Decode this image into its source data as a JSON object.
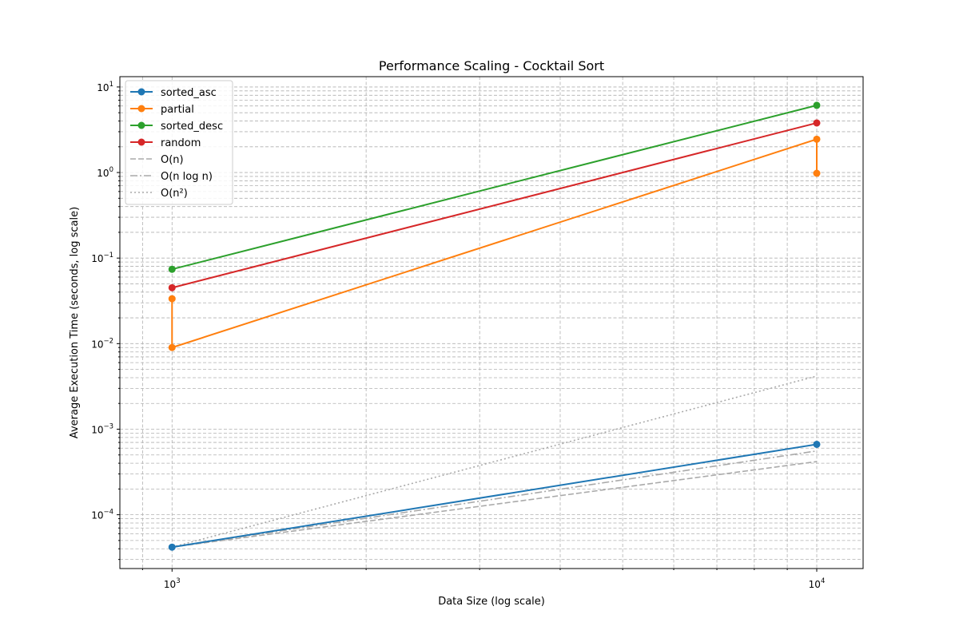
{
  "chart_data": {
    "type": "line",
    "title": "Performance Scaling - Cocktail Sort",
    "xlabel": "Data Size (log scale)",
    "ylabel": "Average Execution Time (seconds, log scale)",
    "xscale": "log",
    "yscale": "log",
    "xlim": [
      830,
      11800
    ],
    "ylim": [
      2.35e-05,
      13.2
    ],
    "grid": true,
    "legend_position": "upper-left",
    "x_ticks": [
      {
        "base": "10",
        "exp": "3",
        "value": 1000
      },
      {
        "base": "10",
        "exp": "4",
        "value": 10000
      }
    ],
    "y_ticks": [
      {
        "base": "10",
        "exp": "−4",
        "value": 0.0001
      },
      {
        "base": "10",
        "exp": "−3",
        "value": 0.001
      },
      {
        "base": "10",
        "exp": "−2",
        "value": 0.01
      },
      {
        "base": "10",
        "exp": "−1",
        "value": 0.1
      },
      {
        "base": "10",
        "exp": "0",
        "value": 1
      },
      {
        "base": "10",
        "exp": "1",
        "value": 10
      }
    ],
    "series": [
      {
        "name": "sorted_asc",
        "color": "#1f77b4",
        "style": "solid",
        "marker": true,
        "points": [
          [
            1000,
            4.18e-05
          ],
          [
            10000,
            0.000665
          ]
        ]
      },
      {
        "name": "partial",
        "color": "#ff7f0e",
        "style": "solid",
        "marker": true,
        "points": [
          [
            1000,
            0.0335
          ],
          [
            1000,
            0.009
          ],
          [
            10000,
            2.45
          ],
          [
            10000,
            0.98
          ]
        ]
      },
      {
        "name": "sorted_desc",
        "color": "#2ca02c",
        "style": "solid",
        "marker": true,
        "points": [
          [
            1000,
            0.074
          ],
          [
            10000,
            6.1
          ]
        ]
      },
      {
        "name": "random",
        "color": "#d62728",
        "style": "solid",
        "marker": true,
        "points": [
          [
            1000,
            0.045
          ],
          [
            10000,
            3.8
          ]
        ]
      },
      {
        "name": "O(n)",
        "color": "#aaaaaa",
        "style": "dashed",
        "marker": false,
        "points": [
          [
            1000,
            4.18e-05
          ],
          [
            10000,
            0.000418
          ]
        ]
      },
      {
        "name": "O(n log n)",
        "color": "#aaaaaa",
        "style": "dashdot",
        "marker": false,
        "points": [
          [
            1000,
            4.18e-05
          ],
          [
            10000,
            0.000557
          ]
        ]
      },
      {
        "name": "O(n²)",
        "color": "#aaaaaa",
        "style": "dotted",
        "marker": false,
        "points": [
          [
            1000,
            4.18e-05
          ],
          [
            10000,
            0.00418
          ]
        ]
      }
    ]
  }
}
